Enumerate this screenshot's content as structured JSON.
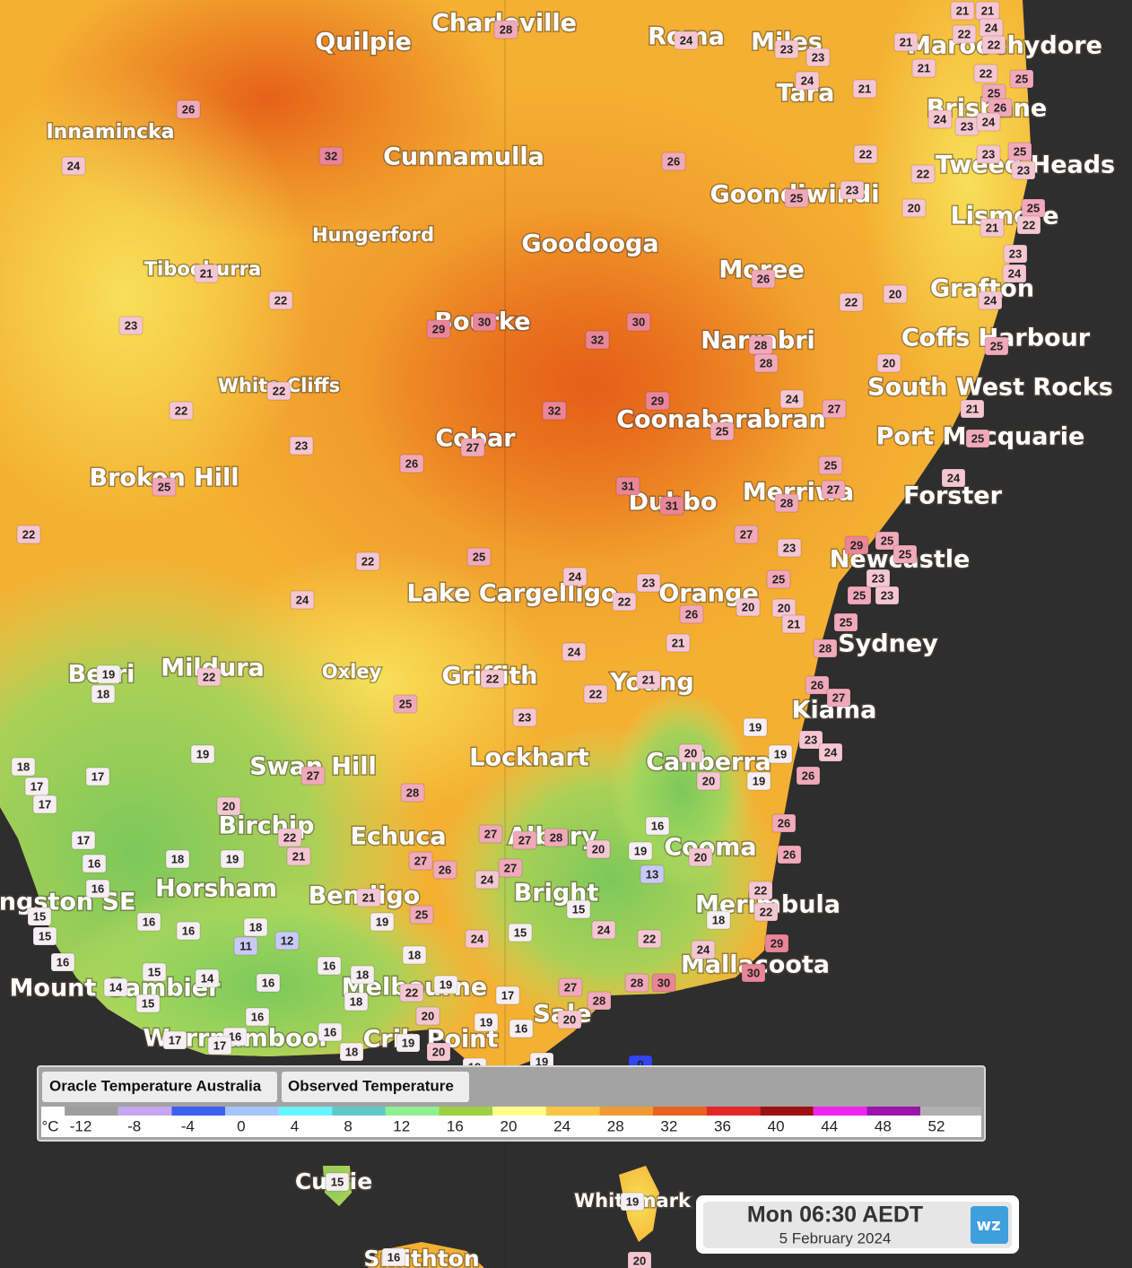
{
  "places": [
    {
      "name": "Charleville"
    },
    {
      "name": "Quilpie"
    },
    {
      "name": "Roma"
    },
    {
      "name": "Miles"
    },
    {
      "name": "Maroochydore"
    },
    {
      "name": "Tara"
    },
    {
      "name": "Brisbane"
    },
    {
      "name": "Innamincka"
    },
    {
      "name": "Cunnamulla"
    },
    {
      "name": "Tweed Heads"
    },
    {
      "name": "Goondiwindi"
    },
    {
      "name": "Lismore"
    },
    {
      "name": "Hungerford"
    },
    {
      "name": "Goodooga"
    },
    {
      "name": "Tibooburra"
    },
    {
      "name": "Moree"
    },
    {
      "name": "Grafton"
    },
    {
      "name": "Bourke"
    },
    {
      "name": "Narrabri"
    },
    {
      "name": "Coffs Harbour"
    },
    {
      "name": "White Cliffs"
    },
    {
      "name": "South West Rocks"
    },
    {
      "name": "Coonabarabran"
    },
    {
      "name": "Cobar"
    },
    {
      "name": "Port Macquarie"
    },
    {
      "name": "Broken Hill"
    },
    {
      "name": "Dubbo"
    },
    {
      "name": "Merriwa"
    },
    {
      "name": "Forster"
    },
    {
      "name": "Newcastle"
    },
    {
      "name": "Lake Cargelligo"
    },
    {
      "name": "Orange"
    },
    {
      "name": "Sydney"
    },
    {
      "name": "Mildura"
    },
    {
      "name": "Oxley"
    },
    {
      "name": "Berri"
    },
    {
      "name": "Griffith"
    },
    {
      "name": "Young"
    },
    {
      "name": "Kiama"
    },
    {
      "name": "Swan Hill"
    },
    {
      "name": "Lockhart"
    },
    {
      "name": "Canberra"
    },
    {
      "name": "Birchip"
    },
    {
      "name": "Echuca"
    },
    {
      "name": "Albury"
    },
    {
      "name": "Cooma"
    },
    {
      "name": "Horsham"
    },
    {
      "name": "Bendigo"
    },
    {
      "name": "Bright"
    },
    {
      "name": "Kingston SE"
    },
    {
      "name": "Merimbula"
    },
    {
      "name": "Mallacoota"
    },
    {
      "name": "Mount Gambier"
    },
    {
      "name": "Melbourne"
    },
    {
      "name": "Sale"
    },
    {
      "name": "Warrnambool"
    },
    {
      "name": "Crib Point"
    },
    {
      "name": "Currie"
    },
    {
      "name": "Whitemark"
    },
    {
      "name": "Smithton"
    }
  ],
  "observations": [
    28,
    24,
    23,
    23,
    24,
    21,
    21,
    24,
    22,
    22,
    21,
    21,
    22,
    25,
    21,
    25,
    26,
    24,
    23,
    24,
    26,
    24,
    32,
    26,
    22,
    23,
    25,
    22,
    23,
    23,
    25,
    20,
    25,
    21,
    22,
    21,
    22,
    23,
    24,
    24,
    22,
    20,
    26,
    23,
    29,
    30,
    30,
    32,
    28,
    28,
    25,
    20,
    22,
    22,
    32,
    29,
    24,
    27,
    21,
    25,
    25,
    23,
    27,
    26,
    25,
    25,
    24,
    31,
    31,
    28,
    27,
    22,
    22,
    25,
    27,
    23,
    29,
    25,
    25,
    24,
    23,
    25,
    23,
    25,
    23,
    24,
    22,
    26,
    20,
    20,
    21,
    25,
    28,
    21,
    24,
    22,
    19,
    18,
    22,
    21,
    22,
    26,
    27,
    25,
    23,
    19,
    19,
    23,
    24,
    19,
    20,
    20,
    19,
    17,
    18,
    17,
    17,
    27,
    28,
    26,
    20,
    26,
    16,
    22,
    21,
    27,
    27,
    28,
    20,
    19,
    20,
    26,
    17,
    16,
    16,
    18,
    19,
    27,
    26,
    27,
    24,
    13,
    22,
    22,
    18,
    15,
    24,
    15,
    24,
    22,
    29,
    24,
    21,
    25,
    19,
    15,
    15,
    16,
    16,
    18,
    11,
    12,
    16,
    15,
    14,
    14,
    15,
    16,
    16,
    18,
    18,
    18,
    22,
    19,
    17,
    27,
    28,
    30,
    28,
    30,
    20,
    20,
    19,
    16,
    16,
    16,
    16,
    17,
    17,
    18,
    19,
    20,
    19,
    19,
    0,
    19,
    15,
    19,
    20,
    16
  ],
  "legend": {
    "tabs": [
      "Oracle Temperature Australia",
      "Observed Temperature"
    ],
    "unit": "°C",
    "ticks": [
      -12,
      -8,
      -4,
      0,
      4,
      8,
      12,
      16,
      20,
      24,
      28,
      32,
      36,
      40,
      44,
      48,
      52
    ],
    "colors": [
      "#9e9e9e",
      "#c7a6f2",
      "#3f5ff0",
      "#a3c6ff",
      "#66f4ff",
      "#5fc9c9",
      "#8ff08f",
      "#9bd043",
      "#ffff8c",
      "#f8c445",
      "#f09a35",
      "#e6641f",
      "#e32626",
      "#9c1212",
      "#f024f0",
      "#9a14ab",
      "#b0b0b0"
    ]
  },
  "timestamp": {
    "time": "Mon 06:30 AEDT",
    "date": "5 February 2024"
  },
  "logo": "wz"
}
